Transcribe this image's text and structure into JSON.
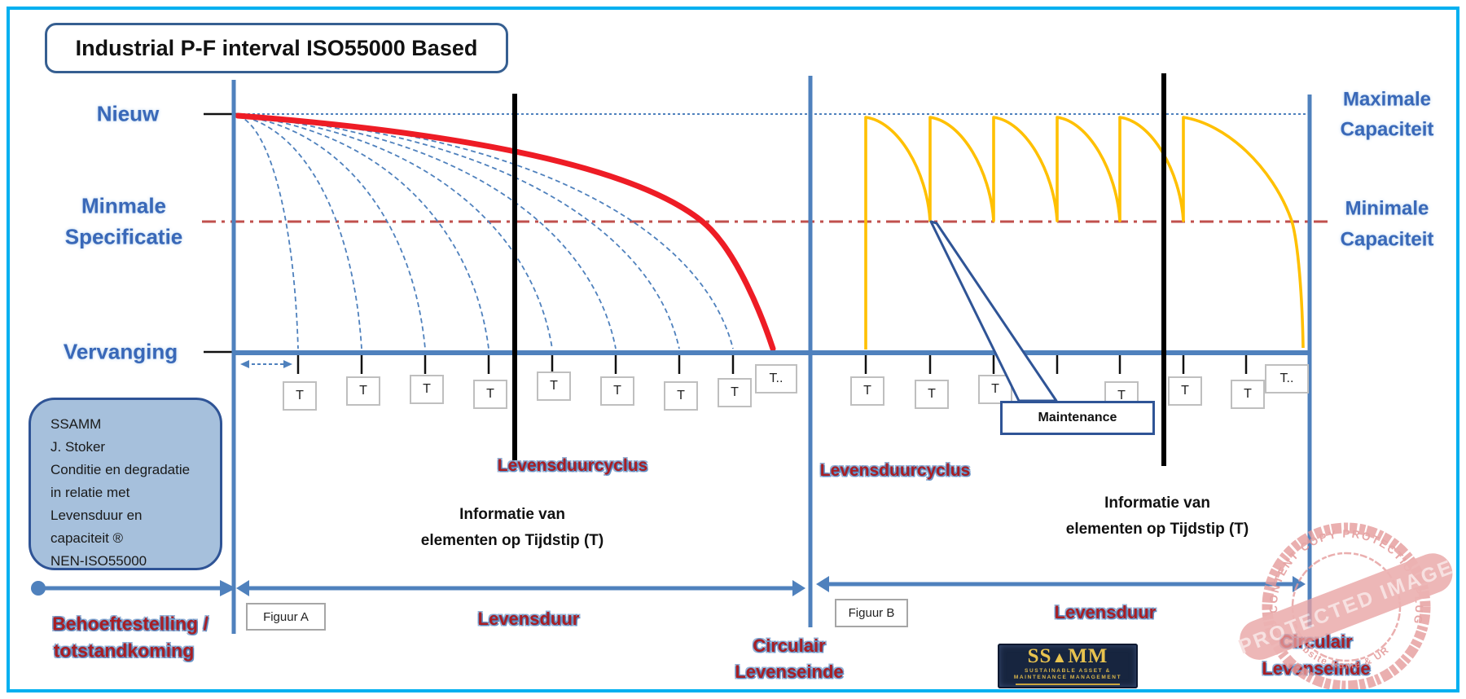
{
  "title": "Industrial P-F interval ISO55000 Based",
  "left_axis": {
    "nieuw": "Nieuw",
    "min_spec_line1": "Minmale",
    "min_spec_line2": "Specificatie",
    "vervanging": "Vervanging"
  },
  "right_axis": {
    "max_line1": "Maximale",
    "max_line2": "Capaciteit",
    "min_line1": "Minimale",
    "min_line2": "Capaciteit"
  },
  "figure_a": {
    "label": "Figuur A",
    "cycle": "Levensduurcyclus",
    "info_line1": "Informatie van",
    "info_line2": "elementen op Tijdstip (T)",
    "tick": "T",
    "tick_more": "T..",
    "lifespan": "Levensduur",
    "end_line1": "Circulair",
    "end_line2": "Levenseinde"
  },
  "figure_b": {
    "label": "Figuur B",
    "cycle": "Levensduurcyclus",
    "info_line1": "Informatie van",
    "info_line2": "elementen op Tijdstip (T)",
    "tick": "T",
    "tick_more": "T..",
    "lifespan": "Levensduur",
    "end_line1": "Circulair",
    "end_line2": "Levenseinde",
    "maintenance": "Maintenance"
  },
  "phase": {
    "line1": "Behoeftestelling /",
    "line2": "totstandkoming"
  },
  "credit": {
    "lines": [
      "SSAMM",
      "J. Stoker",
      "Conditie en degradatie",
      "in relatie met",
      "Levensduur en",
      "capaciteit ®",
      "NEN-ISO55000"
    ]
  },
  "logo": {
    "part1": "SS",
    "triangle": "▲",
    "part2": "MM",
    "sub1": "SUSTAINABLE ASSET &",
    "sub2": "MAINTENANCE MANAGEMENT"
  },
  "stamp": {
    "arc_top": "WP CONTENT COPY PROTECTION PLUGIN",
    "banner": "PROTECTED IMAGE",
    "arc_bottom": "My Website Name & URL Here"
  },
  "colors": {
    "frame_cyan": "#00b0f0",
    "axis_blue": "#4f81bd",
    "dark_blue": "#2f5496",
    "curve_red": "#ee1c25",
    "dashdot_red": "#c0504d",
    "curve_yellow": "#ffc000",
    "label_blue": "#3968b8",
    "label_red": "#a91e23",
    "stamp_pink": "#e59c9c"
  }
}
